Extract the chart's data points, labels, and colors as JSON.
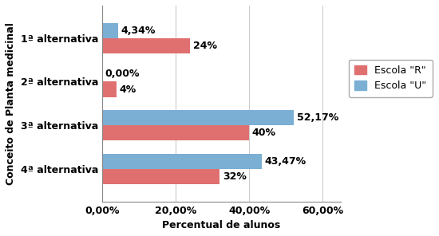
{
  "categories": [
    "1ª alternativa",
    "2ª alternativa",
    "3ª alternativa",
    "4ª alternativa"
  ],
  "escola_r": [
    24,
    4,
    40,
    32
  ],
  "escola_u": [
    4.34,
    0.0,
    52.17,
    43.47
  ],
  "escola_r_labels": [
    "24%",
    "4%",
    "40%",
    "32%"
  ],
  "escola_u_labels": [
    "4,34%",
    "0,00%",
    "52,17%",
    "43,47%"
  ],
  "color_r": "#E07070",
  "color_u": "#7BAFD4",
  "bar_height": 0.35,
  "xlim": [
    0,
    65
  ],
  "xticks": [
    0,
    20,
    40,
    60
  ],
  "xtick_labels": [
    "0,00%",
    "20,00%",
    "40,00%",
    "60,00%"
  ],
  "xlabel": "Percentual de alunos",
  "ylabel": "Conceito de Planta medicinal",
  "legend_r": "Escola \"R\"",
  "legend_u": "Escola \"U\"",
  "background_color": "#FFFFFF",
  "label_fontsize": 9,
  "tick_fontsize": 9,
  "legend_fontsize": 9
}
